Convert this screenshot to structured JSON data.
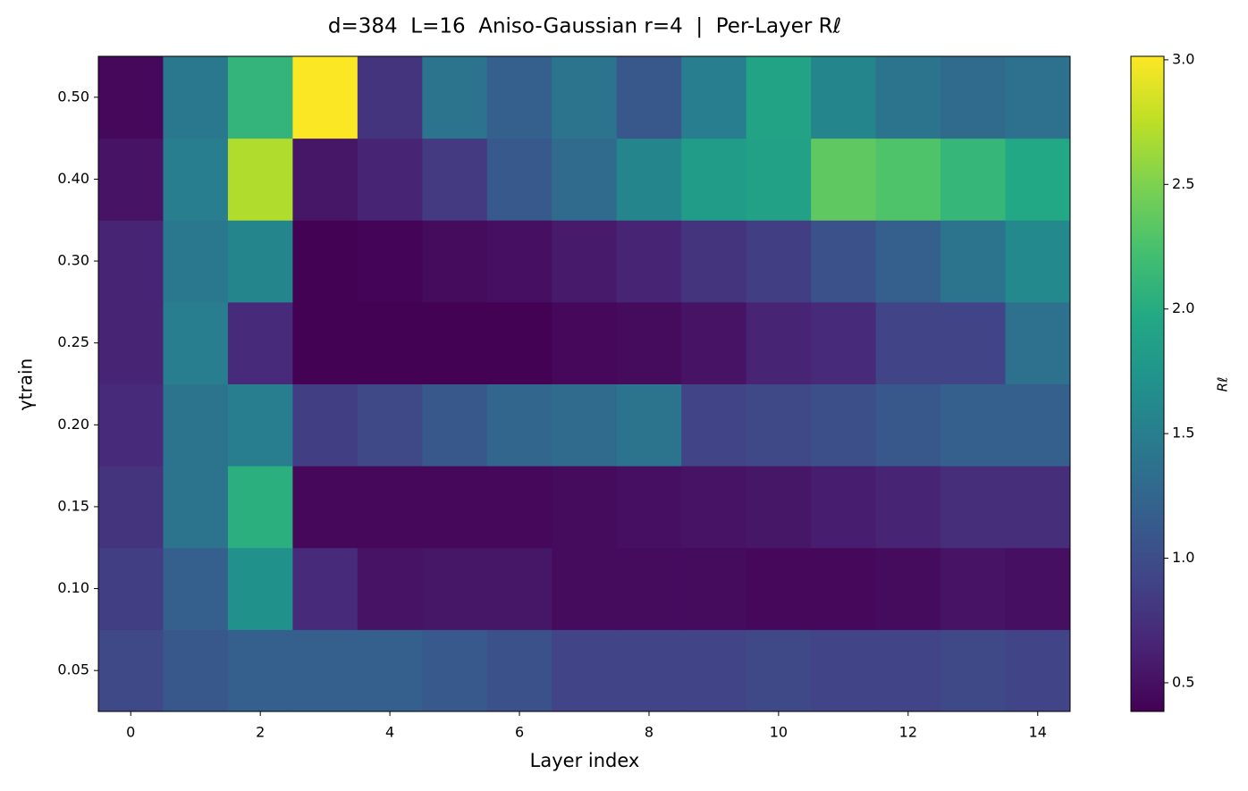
{
  "chart_data": {
    "type": "heatmap",
    "title": "d=384  L=16  Aniso-Gaussian r=4  |  Per-Layer Rℓ",
    "xlabel": "Layer index",
    "ylabel": "γtrain",
    "colorbar_label": "Rℓ",
    "colormap": "viridis",
    "x": [
      0,
      1,
      2,
      3,
      4,
      5,
      6,
      7,
      8,
      9,
      10,
      11,
      12,
      13,
      14
    ],
    "xlim": [
      -0.5,
      14.5
    ],
    "xticks": [
      0,
      2,
      4,
      6,
      8,
      10,
      12,
      14
    ],
    "categories": [
      "0.05",
      "0.10",
      "0.15",
      "0.20",
      "0.25",
      "0.30",
      "0.40",
      "0.50"
    ],
    "z": [
      [
        0.96,
        1.1,
        1.17,
        1.17,
        1.17,
        1.12,
        1.04,
        0.91,
        0.91,
        0.91,
        0.96,
        0.91,
        0.91,
        0.96,
        0.91
      ],
      [
        0.86,
        1.17,
        1.7,
        0.7,
        0.52,
        0.54,
        0.54,
        0.46,
        0.46,
        0.46,
        0.44,
        0.44,
        0.46,
        0.52,
        0.49
      ],
      [
        0.78,
        1.38,
        2.04,
        0.44,
        0.44,
        0.44,
        0.44,
        0.46,
        0.49,
        0.52,
        0.54,
        0.6,
        0.65,
        0.73,
        0.73
      ],
      [
        0.7,
        1.38,
        1.49,
        0.86,
        0.96,
        1.1,
        1.25,
        1.3,
        1.38,
        0.91,
        0.96,
        1.02,
        1.1,
        1.17,
        1.17
      ],
      [
        0.65,
        1.49,
        0.7,
        0.39,
        0.39,
        0.39,
        0.39,
        0.44,
        0.46,
        0.52,
        0.65,
        0.7,
        0.91,
        0.91,
        1.36
      ],
      [
        0.65,
        1.44,
        1.57,
        0.39,
        0.41,
        0.46,
        0.49,
        0.57,
        0.65,
        0.78,
        0.86,
        1.04,
        1.17,
        1.38,
        1.62
      ],
      [
        0.52,
        1.49,
        2.7,
        0.54,
        0.65,
        0.83,
        1.12,
        1.3,
        1.57,
        1.83,
        1.88,
        2.36,
        2.28,
        2.12,
        1.96
      ],
      [
        0.44,
        1.44,
        2.1,
        3.01,
        0.78,
        1.38,
        1.17,
        1.38,
        1.1,
        1.49,
        1.91,
        1.57,
        1.38,
        1.3,
        1.36
      ]
    ],
    "clim": [
      0.385,
      3.014
    ],
    "cticks": [
      {
        "value": 0.5,
        "label": "0.5"
      },
      {
        "value": 1,
        "label": "1.0"
      },
      {
        "value": 1.5,
        "label": "1.5"
      },
      {
        "value": 2,
        "label": "2.0"
      },
      {
        "value": 2.5,
        "label": "2.5"
      },
      {
        "value": 3,
        "label": "3.0"
      }
    ]
  }
}
